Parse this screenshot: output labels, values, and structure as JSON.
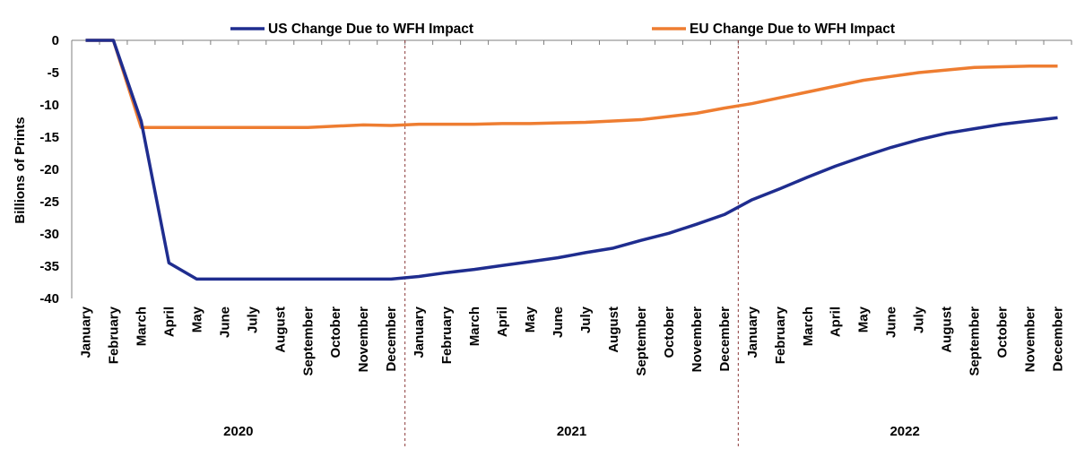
{
  "chart_data": {
    "type": "line",
    "ylabel": "Billions of Prints",
    "ylim": [
      -40,
      0
    ],
    "yticks": [
      0,
      -5,
      -10,
      -15,
      -20,
      -25,
      -30,
      -35,
      -40
    ],
    "grid": false,
    "legend_position": "top",
    "years": [
      "2020",
      "2021",
      "2022"
    ],
    "categories": [
      "January",
      "February",
      "March",
      "April",
      "May",
      "June",
      "July",
      "August",
      "September",
      "October",
      "November",
      "December",
      "January",
      "February",
      "March",
      "April",
      "May",
      "June",
      "July",
      "August",
      "September",
      "October",
      "November",
      "December",
      "January",
      "February",
      "March",
      "April",
      "May",
      "June",
      "July",
      "August",
      "September",
      "October",
      "November",
      "December"
    ],
    "series": [
      {
        "name": "US Change Due to WFH Impact",
        "color": "#1f2d8f",
        "values": [
          0,
          0,
          -12.5,
          -34.5,
          -37,
          -37,
          -37,
          -37,
          -37,
          -37,
          -37,
          -37,
          -36.6,
          -36,
          -35.5,
          -34.9,
          -34.3,
          -33.7,
          -32.9,
          -32.2,
          -31,
          -29.9,
          -28.5,
          -27,
          -24.7,
          -23,
          -21.2,
          -19.5,
          -18,
          -16.6,
          -15.4,
          -14.4,
          -13.7,
          -13,
          -12.5,
          -12
        ]
      },
      {
        "name": "EU Change Due to WFH Impact",
        "color": "#ee7d31",
        "values": [
          0,
          0,
          -13.5,
          -13.5,
          -13.5,
          -13.5,
          -13.5,
          -13.5,
          -13.5,
          -13.3,
          -13.1,
          -13.2,
          -13,
          -13,
          -13,
          -12.9,
          -12.9,
          -12.8,
          -12.7,
          -12.5,
          -12.3,
          -11.8,
          -11.3,
          -10.5,
          -9.8,
          -8.9,
          -8,
          -7.1,
          -6.2,
          -5.6,
          -5,
          -4.6,
          -4.2,
          -4.1,
          -4,
          -4
        ]
      }
    ]
  }
}
